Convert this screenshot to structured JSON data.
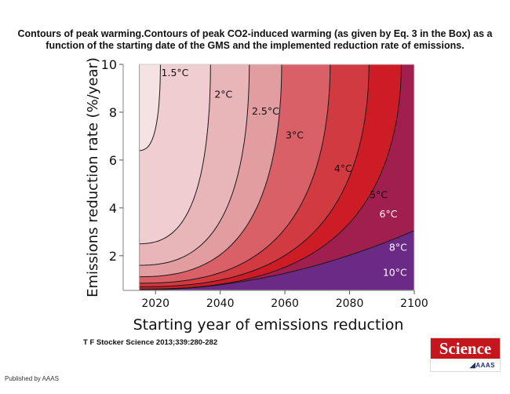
{
  "caption": "Contours of peak warming.Contours of peak CO2-induced warming (as given by Eq. 3 in the Box) as a function of the starting date of the GMS and the implemented reduction rate of emissions.",
  "citation": "T F Stocker Science 2013;339:280-282",
  "published_by": "Published by AAAS",
  "logo": {
    "name": "Science",
    "org": "AAAS",
    "brand_color": "#c4161c"
  },
  "chart_data": {
    "type": "contour",
    "title": "",
    "xlabel": "Starting year of emissions reduction",
    "ylabel": "Emissions reduction rate (%/year)",
    "xlim": [
      2010,
      2100
    ],
    "ylim": [
      0.55,
      10
    ],
    "data_x_start": 2015,
    "xticks": [
      2020,
      2040,
      2060,
      2080,
      2100
    ],
    "xtick_labels": [
      "2020",
      "2040",
      "2060",
      "2080",
      "2100"
    ],
    "yticks": [
      2,
      4,
      6,
      8,
      10
    ],
    "ytick_labels": [
      "2",
      "4",
      "6",
      "8",
      "10"
    ],
    "grid": false,
    "levels": [
      {
        "value": 1.5,
        "label": "1.5°C",
        "fill": "#f5e3e4",
        "top_year": 2021.5,
        "left_rate": 6.4,
        "label_color": "#111111",
        "label_at": [
          2026,
          9.5
        ]
      },
      {
        "value": 2,
        "label": "2°C",
        "fill": "#efcdd0",
        "top_year": 2037,
        "left_rate": 2.5,
        "label_color": "#111111",
        "label_at": [
          2041,
          8.6
        ]
      },
      {
        "value": 2.5,
        "label": "2.5°C",
        "fill": "#e8b5b8",
        "top_year": 2049,
        "left_rate": 1.6,
        "label_color": "#111111",
        "label_at": [
          2054,
          7.9
        ]
      },
      {
        "value": 3,
        "label": "3°C",
        "fill": "#e29da0",
        "top_year": 2059,
        "left_rate": 1.12,
        "label_color": "#111111",
        "label_at": [
          2063,
          6.9
        ]
      },
      {
        "value": 4,
        "label": "4°C",
        "fill": "#d86066",
        "top_year": 2074,
        "left_rate": 0.85,
        "label_color": "#111111",
        "label_at": [
          2078,
          5.5
        ]
      },
      {
        "value": 5,
        "label": "5°C",
        "fill": "#d03a40",
        "top_year": 2086,
        "left_rate": 0.7,
        "label_color": "#111111",
        "label_at": [
          2089,
          4.4
        ]
      },
      {
        "value": 6,
        "label": "6°C",
        "fill": "#ce1c26",
        "top_year": 2096,
        "left_rate": 0.6,
        "label_color": "#ffffff",
        "label_at": [
          2092,
          3.6
        ]
      },
      {
        "value": 8,
        "label": "8°C",
        "fill": "#a01f4e",
        "right_rate": 3.05,
        "left_rate": 0.57,
        "label_color": "#ffffff",
        "label_at": [
          2095,
          2.2
        ]
      },
      {
        "value": 10,
        "label": "10°C",
        "fill": "#6a2a86",
        "right_rate": 1.9,
        "left_rate": 0.56,
        "label_color": "#ffffff",
        "label_at": [
          2094,
          1.15
        ]
      }
    ],
    "colorbar": false,
    "legend": "none"
  }
}
